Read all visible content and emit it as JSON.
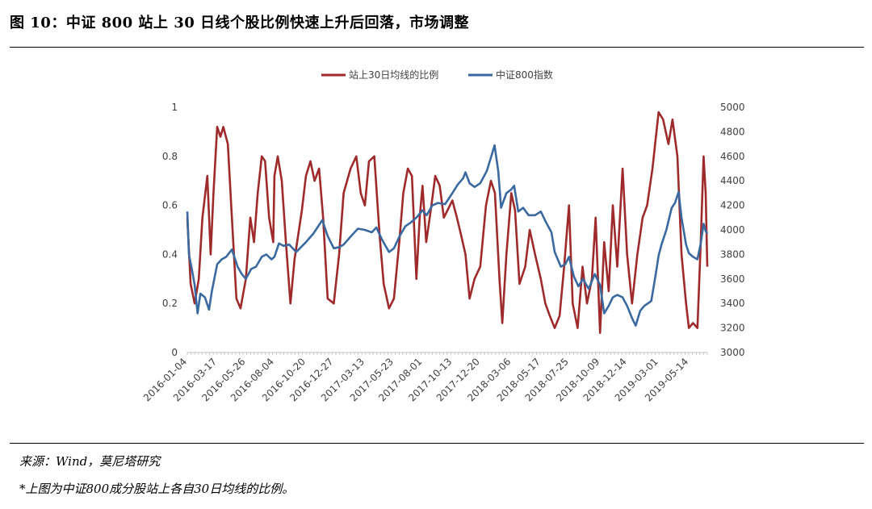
{
  "figure": {
    "title": "图 10：中证 800 站上 30 日线个股比例快速上升后回落，市场调整",
    "source": "来源：Wind，莫尼塔研究",
    "note": "*上图为中证800成分股站上各自30日均线的比例。"
  },
  "chart_data": {
    "type": "line",
    "legend_position": "top",
    "grid": false,
    "x_tick_labels": [
      "2016-01-04",
      "2016-03-17",
      "2016-05-26",
      "2016-08-04",
      "2016-10-20",
      "2016-12-27",
      "2017-03-13",
      "2017-05-23",
      "2017-08-01",
      "2017-10-13",
      "2017-12-20",
      "2018-03-06",
      "2018-05-17",
      "2018-07-25",
      "2018-10-09",
      "2018-12-14",
      "2019-03-01",
      "2019-05-14"
    ],
    "y_left": {
      "range": [
        0,
        1
      ],
      "ticks": [
        "0",
        "0.2",
        "0.4",
        "0.6",
        "0.8",
        "1"
      ]
    },
    "y_right": {
      "range": [
        3000,
        5000
      ],
      "ticks": [
        "3000",
        "3200",
        "3400",
        "3600",
        "3800",
        "4000",
        "4200",
        "4400",
        "4600",
        "4800",
        "5000"
      ]
    },
    "x_range": [
      "2016-01-04",
      "2019-06-28"
    ],
    "series": [
      {
        "name": "站上30日均线的比例",
        "axis": "left",
        "color": "#9e2a2b",
        "points": [
          [
            "2016-01-04",
            0.55
          ],
          [
            "2016-01-12",
            0.28
          ],
          [
            "2016-01-22",
            0.2
          ],
          [
            "2016-02-01",
            0.3
          ],
          [
            "2016-02-10",
            0.55
          ],
          [
            "2016-02-22",
            0.72
          ],
          [
            "2016-03-01",
            0.4
          ],
          [
            "2016-03-08",
            0.65
          ],
          [
            "2016-03-17",
            0.92
          ],
          [
            "2016-03-25",
            0.88
          ],
          [
            "2016-04-01",
            0.92
          ],
          [
            "2016-04-12",
            0.85
          ],
          [
            "2016-04-22",
            0.55
          ],
          [
            "2016-05-03",
            0.22
          ],
          [
            "2016-05-13",
            0.18
          ],
          [
            "2016-05-26",
            0.3
          ],
          [
            "2016-06-06",
            0.55
          ],
          [
            "2016-06-15",
            0.45
          ],
          [
            "2016-06-24",
            0.65
          ],
          [
            "2016-07-04",
            0.8
          ],
          [
            "2016-07-12",
            0.78
          ],
          [
            "2016-07-22",
            0.55
          ],
          [
            "2016-08-01",
            0.45
          ],
          [
            "2016-08-04",
            0.72
          ],
          [
            "2016-08-12",
            0.8
          ],
          [
            "2016-08-22",
            0.7
          ],
          [
            "2016-09-01",
            0.45
          ],
          [
            "2016-09-12",
            0.2
          ],
          [
            "2016-09-22",
            0.38
          ],
          [
            "2016-10-10",
            0.58
          ],
          [
            "2016-10-20",
            0.72
          ],
          [
            "2016-10-31",
            0.78
          ],
          [
            "2016-11-10",
            0.7
          ],
          [
            "2016-11-21",
            0.75
          ],
          [
            "2016-12-01",
            0.55
          ],
          [
            "2016-12-12",
            0.22
          ],
          [
            "2016-12-27",
            0.2
          ],
          [
            "2017-01-09",
            0.4
          ],
          [
            "2017-01-20",
            0.65
          ],
          [
            "2017-02-06",
            0.75
          ],
          [
            "2017-02-20",
            0.8
          ],
          [
            "2017-03-03",
            0.65
          ],
          [
            "2017-03-13",
            0.6
          ],
          [
            "2017-03-23",
            0.78
          ],
          [
            "2017-04-05",
            0.8
          ],
          [
            "2017-04-18",
            0.48
          ],
          [
            "2017-04-28",
            0.28
          ],
          [
            "2017-05-11",
            0.18
          ],
          [
            "2017-05-23",
            0.22
          ],
          [
            "2017-06-05",
            0.45
          ],
          [
            "2017-06-15",
            0.65
          ],
          [
            "2017-06-26",
            0.75
          ],
          [
            "2017-07-06",
            0.72
          ],
          [
            "2017-07-17",
            0.3
          ],
          [
            "2017-07-25",
            0.55
          ],
          [
            "2017-08-01",
            0.68
          ],
          [
            "2017-08-10",
            0.45
          ],
          [
            "2017-08-21",
            0.58
          ],
          [
            "2017-09-01",
            0.72
          ],
          [
            "2017-09-12",
            0.68
          ],
          [
            "2017-09-22",
            0.55
          ],
          [
            "2017-10-13",
            0.62
          ],
          [
            "2017-10-24",
            0.55
          ],
          [
            "2017-11-03",
            0.48
          ],
          [
            "2017-11-14",
            0.4
          ],
          [
            "2017-11-24",
            0.22
          ],
          [
            "2017-12-06",
            0.3
          ],
          [
            "2017-12-20",
            0.35
          ],
          [
            "2018-01-03",
            0.6
          ],
          [
            "2018-01-15",
            0.7
          ],
          [
            "2018-01-25",
            0.65
          ],
          [
            "2018-02-05",
            0.3
          ],
          [
            "2018-02-12",
            0.12
          ],
          [
            "2018-02-22",
            0.4
          ],
          [
            "2018-03-06",
            0.65
          ],
          [
            "2018-03-15",
            0.58
          ],
          [
            "2018-03-26",
            0.28
          ],
          [
            "2018-04-09",
            0.35
          ],
          [
            "2018-04-20",
            0.5
          ],
          [
            "2018-05-03",
            0.4
          ],
          [
            "2018-05-17",
            0.3
          ],
          [
            "2018-05-28",
            0.2
          ],
          [
            "2018-06-08",
            0.15
          ],
          [
            "2018-06-20",
            0.1
          ],
          [
            "2018-07-02",
            0.15
          ],
          [
            "2018-07-13",
            0.35
          ],
          [
            "2018-07-25",
            0.6
          ],
          [
            "2018-08-03",
            0.2
          ],
          [
            "2018-08-15",
            0.1
          ],
          [
            "2018-08-27",
            0.35
          ],
          [
            "2018-09-07",
            0.2
          ],
          [
            "2018-09-19",
            0.3
          ],
          [
            "2018-09-28",
            0.55
          ],
          [
            "2018-10-09",
            0.08
          ],
          [
            "2018-10-19",
            0.45
          ],
          [
            "2018-10-30",
            0.25
          ],
          [
            "2018-11-09",
            0.6
          ],
          [
            "2018-11-20",
            0.35
          ],
          [
            "2018-12-03",
            0.75
          ],
          [
            "2018-12-14",
            0.4
          ],
          [
            "2018-12-26",
            0.2
          ],
          [
            "2019-01-08",
            0.4
          ],
          [
            "2019-01-21",
            0.55
          ],
          [
            "2019-02-01",
            0.6
          ],
          [
            "2019-02-14",
            0.75
          ],
          [
            "2019-02-25",
            0.92
          ],
          [
            "2019-03-01",
            0.98
          ],
          [
            "2019-03-12",
            0.95
          ],
          [
            "2019-03-25",
            0.85
          ],
          [
            "2019-04-04",
            0.95
          ],
          [
            "2019-04-16",
            0.8
          ],
          [
            "2019-04-26",
            0.4
          ],
          [
            "2019-05-07",
            0.2
          ],
          [
            "2019-05-14",
            0.1
          ],
          [
            "2019-05-24",
            0.12
          ],
          [
            "2019-06-04",
            0.1
          ],
          [
            "2019-06-12",
            0.45
          ],
          [
            "2019-06-19",
            0.8
          ],
          [
            "2019-06-24",
            0.65
          ],
          [
            "2019-06-28",
            0.35
          ]
        ]
      },
      {
        "name": "中证800指数",
        "axis": "right",
        "color": "#3a69a0",
        "points": [
          [
            "2016-01-04",
            4150
          ],
          [
            "2016-01-08",
            3800
          ],
          [
            "2016-01-15",
            3680
          ],
          [
            "2016-01-22",
            3550
          ],
          [
            "2016-01-29",
            3320
          ],
          [
            "2016-02-05",
            3480
          ],
          [
            "2016-02-16",
            3450
          ],
          [
            "2016-02-26",
            3350
          ],
          [
            "2016-03-04",
            3500
          ],
          [
            "2016-03-17",
            3720
          ],
          [
            "2016-03-28",
            3760
          ],
          [
            "2016-04-08",
            3780
          ],
          [
            "2016-04-22",
            3840
          ],
          [
            "2016-05-06",
            3700
          ],
          [
            "2016-05-16",
            3640
          ],
          [
            "2016-05-26",
            3600
          ],
          [
            "2016-06-08",
            3680
          ],
          [
            "2016-06-20",
            3700
          ],
          [
            "2016-07-04",
            3780
          ],
          [
            "2016-07-15",
            3800
          ],
          [
            "2016-07-28",
            3760
          ],
          [
            "2016-08-04",
            3780
          ],
          [
            "2016-08-15",
            3890
          ],
          [
            "2016-08-26",
            3870
          ],
          [
            "2016-09-09",
            3880
          ],
          [
            "2016-09-26",
            3820
          ],
          [
            "2016-10-20",
            3900
          ],
          [
            "2016-11-07",
            3970
          ],
          [
            "2016-11-21",
            4040
          ],
          [
            "2016-11-29",
            4080
          ],
          [
            "2016-12-12",
            3950
          ],
          [
            "2016-12-27",
            3850
          ],
          [
            "2017-01-10",
            3860
          ],
          [
            "2017-01-20",
            3880
          ],
          [
            "2017-02-10",
            3960
          ],
          [
            "2017-02-24",
            4010
          ],
          [
            "2017-03-13",
            4000
          ],
          [
            "2017-03-30",
            3980
          ],
          [
            "2017-04-10",
            4020
          ],
          [
            "2017-04-24",
            3920
          ],
          [
            "2017-05-11",
            3820
          ],
          [
            "2017-05-23",
            3850
          ],
          [
            "2017-06-06",
            3950
          ],
          [
            "2017-06-20",
            4030
          ],
          [
            "2017-07-03",
            4060
          ],
          [
            "2017-07-17",
            4100
          ],
          [
            "2017-08-01",
            4160
          ],
          [
            "2017-08-11",
            4120
          ],
          [
            "2017-08-25",
            4200
          ],
          [
            "2017-09-08",
            4220
          ],
          [
            "2017-09-25",
            4210
          ],
          [
            "2017-10-13",
            4300
          ],
          [
            "2017-10-26",
            4370
          ],
          [
            "2017-11-08",
            4420
          ],
          [
            "2017-11-14",
            4470
          ],
          [
            "2017-11-24",
            4380
          ],
          [
            "2017-12-06",
            4350
          ],
          [
            "2017-12-20",
            4380
          ],
          [
            "2018-01-05",
            4480
          ],
          [
            "2018-01-16",
            4600
          ],
          [
            "2018-01-24",
            4690
          ],
          [
            "2018-02-02",
            4480
          ],
          [
            "2018-02-09",
            4180
          ],
          [
            "2018-02-22",
            4300
          ],
          [
            "2018-03-06",
            4330
          ],
          [
            "2018-03-13",
            4360
          ],
          [
            "2018-03-23",
            4150
          ],
          [
            "2018-04-04",
            4180
          ],
          [
            "2018-04-17",
            4120
          ],
          [
            "2018-05-03",
            4120
          ],
          [
            "2018-05-17",
            4150
          ],
          [
            "2018-05-30",
            4060
          ],
          [
            "2018-06-12",
            3980
          ],
          [
            "2018-06-20",
            3820
          ],
          [
            "2018-07-05",
            3700
          ],
          [
            "2018-07-16",
            3720
          ],
          [
            "2018-07-25",
            3780
          ],
          [
            "2018-08-06",
            3620
          ],
          [
            "2018-08-17",
            3540
          ],
          [
            "2018-08-28",
            3600
          ],
          [
            "2018-09-11",
            3520
          ],
          [
            "2018-09-26",
            3640
          ],
          [
            "2018-10-09",
            3550
          ],
          [
            "2018-10-19",
            3320
          ],
          [
            "2018-10-30",
            3380
          ],
          [
            "2018-11-09",
            3450
          ],
          [
            "2018-11-20",
            3470
          ],
          [
            "2018-12-03",
            3450
          ],
          [
            "2018-12-14",
            3380
          ],
          [
            "2018-12-26",
            3280
          ],
          [
            "2019-01-04",
            3220
          ],
          [
            "2019-01-15",
            3340
          ],
          [
            "2019-01-25",
            3380
          ],
          [
            "2019-02-11",
            3420
          ],
          [
            "2019-02-21",
            3620
          ],
          [
            "2019-03-01",
            3790
          ],
          [
            "2019-03-08",
            3880
          ],
          [
            "2019-03-20",
            4000
          ],
          [
            "2019-04-02",
            4180
          ],
          [
            "2019-04-10",
            4220
          ],
          [
            "2019-04-19",
            4310
          ],
          [
            "2019-04-26",
            4100
          ],
          [
            "2019-05-07",
            3880
          ],
          [
            "2019-05-14",
            3810
          ],
          [
            "2019-05-24",
            3780
          ],
          [
            "2019-06-04",
            3760
          ],
          [
            "2019-06-12",
            3890
          ],
          [
            "2019-06-19",
            4050
          ],
          [
            "2019-06-24",
            3990
          ],
          [
            "2019-06-28",
            3970
          ]
        ]
      }
    ]
  }
}
